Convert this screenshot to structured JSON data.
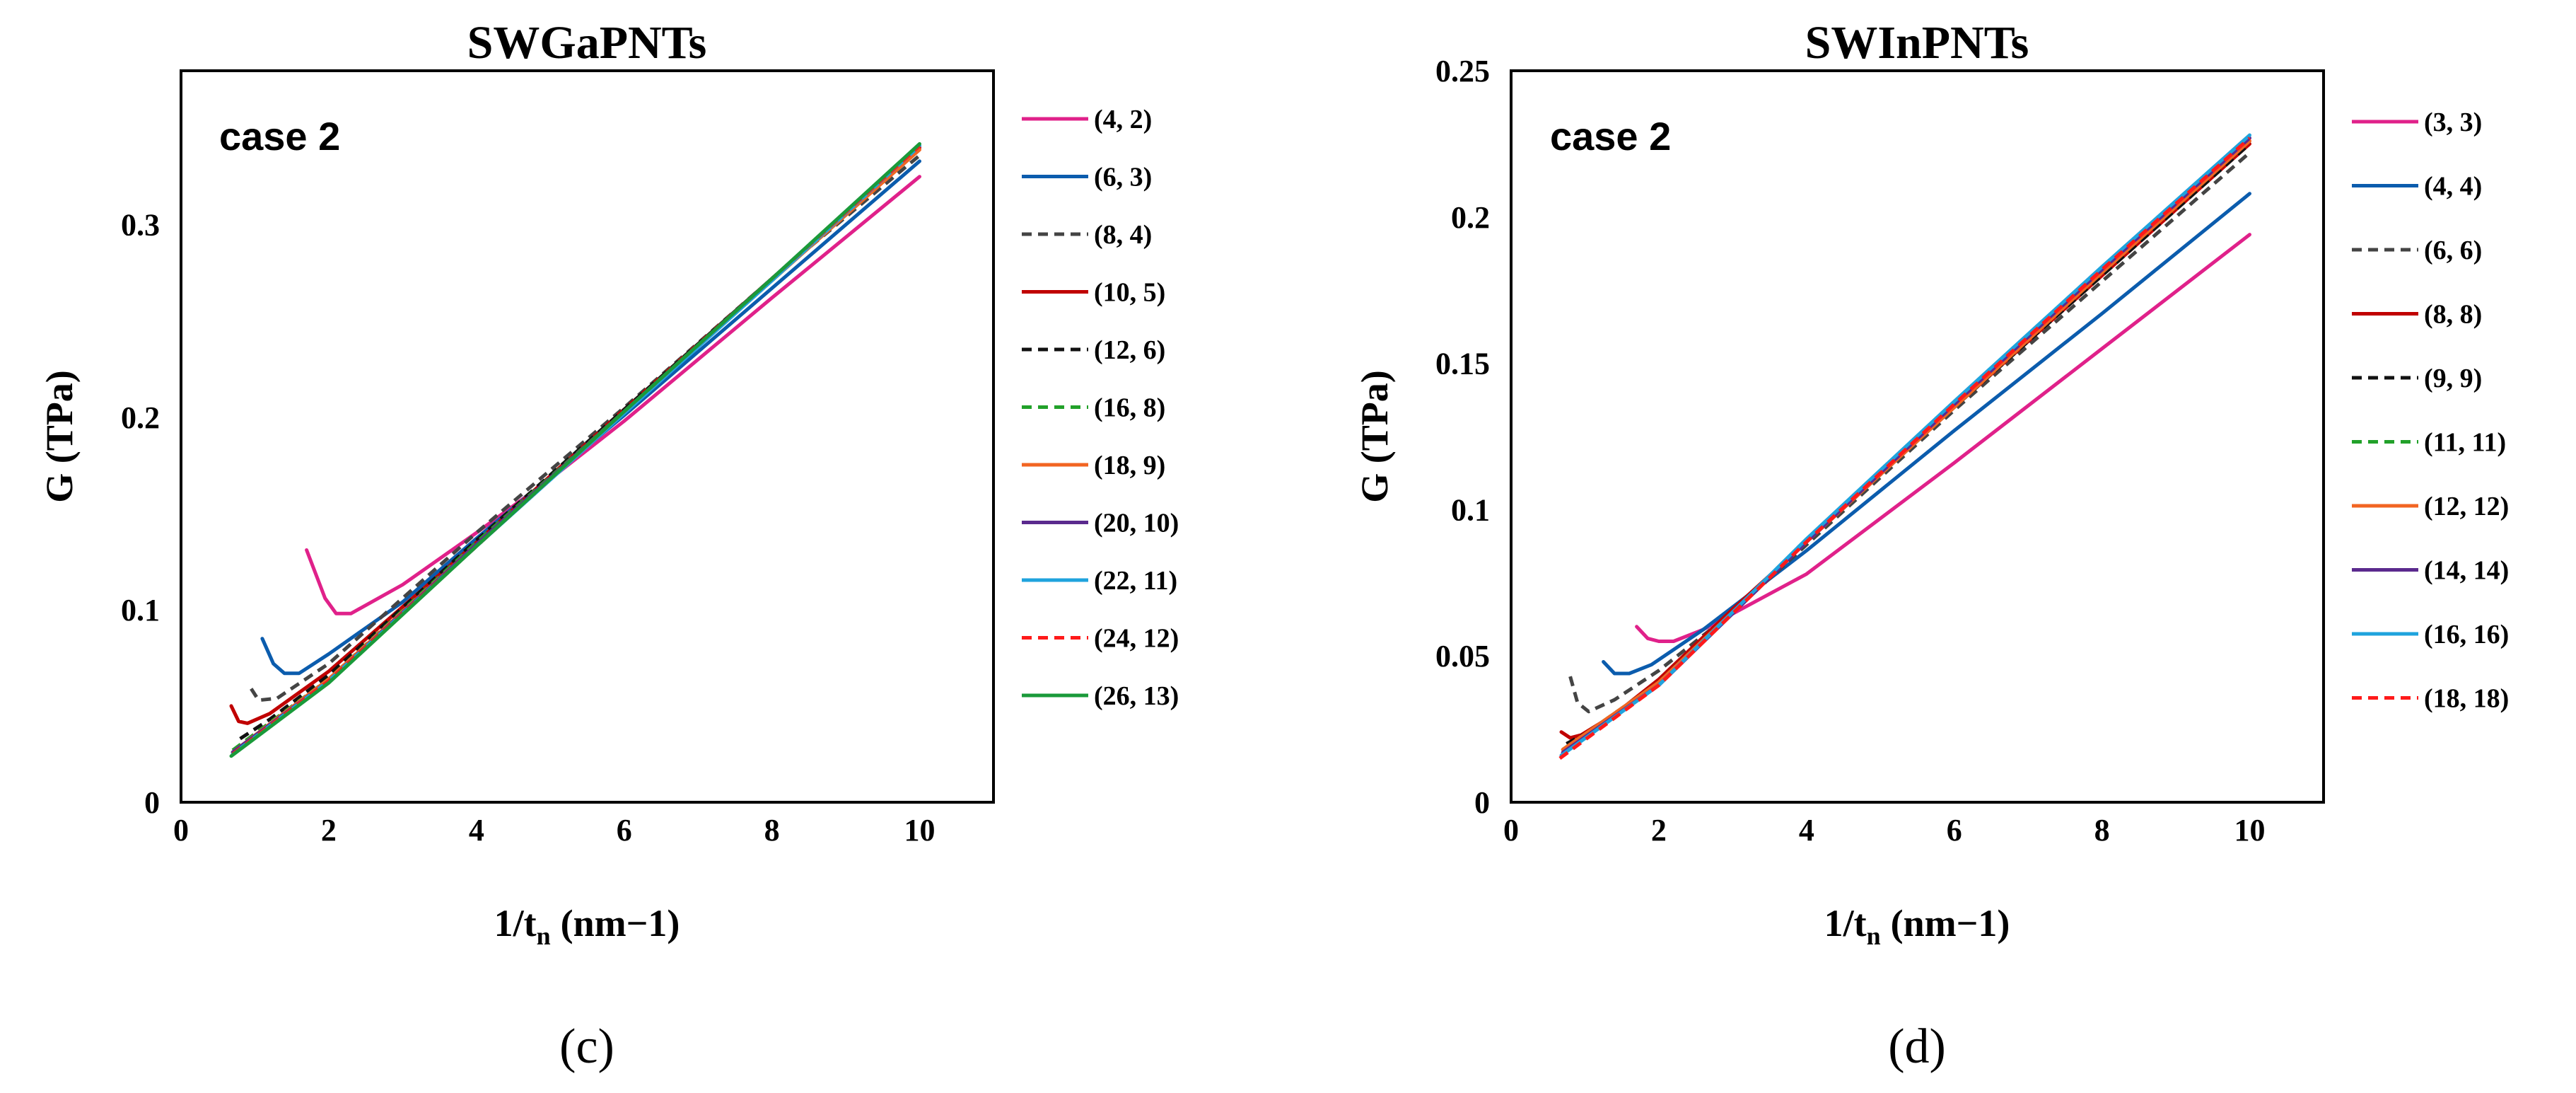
{
  "chart_data": [
    {
      "type": "line",
      "panel_label": "(c)",
      "title": "SWGaPNTs",
      "annotation": "case 2",
      "xlabel_main": "1/t",
      "xlabel_sub": "n",
      "xlabel_unit": "(nm−1)",
      "ylabel": "G (TPa)",
      "xlim": [
        0,
        11
      ],
      "ylim": [
        0,
        0.38
      ],
      "xticks": [
        0,
        2,
        4,
        6,
        8,
        10
      ],
      "yticks": [
        0,
        0.1,
        0.2,
        0.3
      ],
      "xtick_labels": [
        "0",
        "2",
        "4",
        "6",
        "8",
        "10"
      ],
      "ytick_labels": [
        "0",
        "0.1",
        "0.2",
        "0.3"
      ],
      "series": [
        {
          "name": "(4, 2)",
          "color": "#e0218a",
          "dash": "solid",
          "x": [
            1.7,
            1.95,
            2.1,
            2.3,
            3.0,
            4.0,
            5.0,
            6.0,
            8.0,
            10.0
          ],
          "y": [
            0.131,
            0.106,
            0.098,
            0.098,
            0.113,
            0.14,
            0.168,
            0.198,
            0.262,
            0.325
          ]
        },
        {
          "name": "(6, 3)",
          "color": "#0b5cad",
          "dash": "solid",
          "x": [
            1.1,
            1.25,
            1.4,
            1.6,
            2.0,
            3.0,
            4.0,
            6.0,
            8.0,
            10.0
          ],
          "y": [
            0.085,
            0.072,
            0.067,
            0.067,
            0.077,
            0.104,
            0.137,
            0.201,
            0.267,
            0.333
          ]
        },
        {
          "name": "(8, 4)",
          "color": "#444444",
          "dash": "dashed",
          "x": [
            0.95,
            1.05,
            1.3,
            2.0,
            4.0,
            6.0,
            8.0,
            10.0
          ],
          "y": [
            0.059,
            0.053,
            0.054,
            0.072,
            0.14,
            0.205,
            0.272,
            0.336
          ]
        },
        {
          "name": "(10, 5)",
          "color": "#c00000",
          "dash": "solid",
          "x": [
            0.68,
            0.78,
            0.9,
            1.2,
            2.0,
            4.0,
            6.0,
            8.0,
            10.0
          ],
          "y": [
            0.05,
            0.042,
            0.041,
            0.046,
            0.068,
            0.135,
            0.204,
            0.272,
            0.34
          ]
        },
        {
          "name": "(12, 6)",
          "color": "#111111",
          "dash": "dashed",
          "x": [
            0.8,
            1.2,
            2.0,
            4.0,
            6.0,
            8.0,
            10.0
          ],
          "y": [
            0.033,
            0.043,
            0.066,
            0.136,
            0.204,
            0.272,
            0.34
          ]
        },
        {
          "name": "(16, 8)",
          "color": "#22a12a",
          "dash": "dashed",
          "x": [
            0.7,
            2.0,
            4.0,
            6.0,
            8.0,
            10.0
          ],
          "y": [
            0.027,
            0.064,
            0.135,
            0.203,
            0.271,
            0.34
          ]
        },
        {
          "name": "(18, 9)",
          "color": "#f26522",
          "dash": "solid",
          "x": [
            0.7,
            2.0,
            4.0,
            6.0,
            8.0,
            10.0
          ],
          "y": [
            0.026,
            0.064,
            0.134,
            0.203,
            0.271,
            0.339
          ]
        },
        {
          "name": "(20, 10)",
          "color": "#5b2a8e",
          "dash": "solid",
          "x": [
            0.7,
            2.0,
            4.0,
            6.0,
            8.0,
            10.0
          ],
          "y": [
            0.026,
            0.063,
            0.134,
            0.203,
            0.272,
            0.341
          ]
        },
        {
          "name": "(22, 11)",
          "color": "#1fa3dd",
          "dash": "solid",
          "x": [
            0.7,
            2.0,
            4.0,
            6.0,
            8.0,
            10.0
          ],
          "y": [
            0.025,
            0.063,
            0.133,
            0.202,
            0.271,
            0.341
          ]
        },
        {
          "name": "(24, 12)",
          "color": "#ff1a1a",
          "dash": "dashed",
          "x": [
            0.7,
            2.0,
            4.0,
            6.0,
            8.0,
            10.0
          ],
          "y": [
            0.025,
            0.063,
            0.133,
            0.203,
            0.272,
            0.341
          ]
        },
        {
          "name": "(26, 13)",
          "color": "#1a9a3a",
          "dash": "solid",
          "x": [
            0.68,
            2.0,
            4.0,
            6.0,
            8.0,
            10.0
          ],
          "y": [
            0.024,
            0.062,
            0.133,
            0.203,
            0.272,
            0.342
          ]
        }
      ]
    },
    {
      "type": "line",
      "panel_label": "(d)",
      "title": "SWInPNTs",
      "annotation": "case 2",
      "xlabel_main": "1/t",
      "xlabel_sub": "n",
      "xlabel_unit": "(nm−1)",
      "ylabel": "G (TPa)",
      "xlim": [
        0,
        11
      ],
      "ylim": [
        0,
        0.25
      ],
      "xticks": [
        0,
        2,
        4,
        6,
        8,
        10
      ],
      "yticks": [
        0,
        0.05,
        0.1,
        0.15,
        0.2,
        0.25
      ],
      "xtick_labels": [
        "0",
        "2",
        "4",
        "6",
        "8",
        "10"
      ],
      "ytick_labels": [
        "0",
        "0.05",
        "0.1",
        "0.15",
        "0.2",
        "0.25"
      ],
      "series": [
        {
          "name": "(3, 3)",
          "color": "#e0218a",
          "dash": "solid",
          "x": [
            1.7,
            1.85,
            2.0,
            2.2,
            2.6,
            4.0,
            6.0,
            8.0,
            10.0
          ],
          "y": [
            0.06,
            0.056,
            0.055,
            0.055,
            0.059,
            0.078,
            0.116,
            0.155,
            0.194
          ]
        },
        {
          "name": "(4, 4)",
          "color": "#0b5cad",
          "dash": "solid",
          "x": [
            1.25,
            1.4,
            1.6,
            1.9,
            2.6,
            4.0,
            6.0,
            8.0,
            10.0
          ],
          "y": [
            0.048,
            0.044,
            0.044,
            0.047,
            0.059,
            0.086,
            0.127,
            0.167,
            0.208
          ]
        },
        {
          "name": "(6, 6)",
          "color": "#444444",
          "dash": "dashed",
          "x": [
            0.8,
            0.9,
            1.05,
            1.4,
            2.0,
            3.0,
            4.0,
            6.0,
            8.0,
            10.0
          ],
          "y": [
            0.043,
            0.034,
            0.031,
            0.035,
            0.045,
            0.065,
            0.088,
            0.134,
            0.178,
            0.222
          ]
        },
        {
          "name": "(8, 8)",
          "color": "#c00000",
          "dash": "solid",
          "x": [
            0.68,
            0.8,
            0.95,
            1.4,
            2.0,
            3.0,
            4.0,
            6.0,
            8.0,
            10.0
          ],
          "y": [
            0.024,
            0.022,
            0.023,
            0.03,
            0.042,
            0.066,
            0.089,
            0.135,
            0.18,
            0.225
          ]
        },
        {
          "name": "(9, 9)",
          "color": "#111111",
          "dash": "dashed",
          "x": [
            0.75,
            1.2,
            2.0,
            3.0,
            4.0,
            6.0,
            8.0,
            10.0
          ],
          "y": [
            0.02,
            0.026,
            0.041,
            0.065,
            0.089,
            0.135,
            0.18,
            0.225
          ]
        },
        {
          "name": "(11, 11)",
          "color": "#22a12a",
          "dash": "dashed",
          "x": [
            0.7,
            2.0,
            4.0,
            6.0,
            8.0,
            10.0
          ],
          "y": [
            0.018,
            0.041,
            0.089,
            0.135,
            0.181,
            0.226
          ]
        },
        {
          "name": "(12, 12)",
          "color": "#f26522",
          "dash": "solid",
          "x": [
            0.7,
            2.0,
            4.0,
            6.0,
            8.0,
            10.0
          ],
          "y": [
            0.018,
            0.041,
            0.089,
            0.135,
            0.181,
            0.226
          ]
        },
        {
          "name": "(14, 14)",
          "color": "#5b2a8e",
          "dash": "solid",
          "x": [
            0.7,
            2.0,
            4.0,
            6.0,
            8.0,
            10.0
          ],
          "y": [
            0.017,
            0.04,
            0.089,
            0.136,
            0.182,
            0.227
          ]
        },
        {
          "name": "(16, 16)",
          "color": "#1fa3dd",
          "dash": "solid",
          "x": [
            0.68,
            2.0,
            4.0,
            6.0,
            8.0,
            10.0
          ],
          "y": [
            0.016,
            0.04,
            0.09,
            0.137,
            0.183,
            0.228
          ]
        },
        {
          "name": "(18, 18)",
          "color": "#ff1a1a",
          "dash": "dashed",
          "x": [
            0.66,
            2.0,
            4.0,
            6.0,
            8.0,
            10.0
          ],
          "y": [
            0.015,
            0.04,
            0.089,
            0.136,
            0.182,
            0.227
          ]
        }
      ]
    }
  ]
}
